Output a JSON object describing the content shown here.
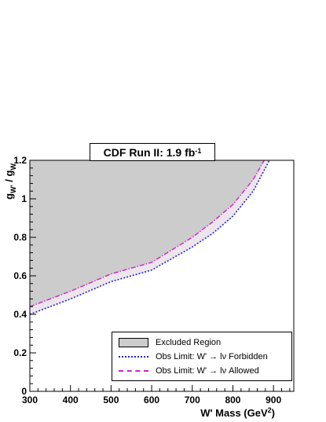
{
  "chart_data": {
    "type": "line",
    "title": "CDF Run II: 1.9 fb",
    "title_superscript": "-1",
    "xlabel": "W' Mass (GeV",
    "xlabel_superscript": "2",
    "xlabel_suffix": ")",
    "ylabel": "g",
    "ylabel_sub1": "W'",
    "ylabel_mid": " / g",
    "ylabel_sub2": "W",
    "xlim": [
      300,
      950
    ],
    "ylim": [
      0,
      1.2
    ],
    "xticks": [
      300,
      400,
      500,
      600,
      700,
      800,
      900
    ],
    "yticks": [
      0,
      0.2,
      0.4,
      0.6,
      0.8,
      1,
      1.2
    ],
    "ytick_labels": [
      "0",
      "0.2",
      "0.4",
      "0.6",
      "0.8",
      "1",
      "1.2"
    ],
    "grid": false,
    "legend_position": "bottom-right",
    "series": [
      {
        "name": "Excluded Region",
        "style": "filled-area-above-curve",
        "color": "#cccccc",
        "x": [
          300,
          400,
          500,
          600,
          700,
          750,
          800,
          850,
          877
        ],
        "y": [
          0.44,
          0.52,
          0.61,
          0.67,
          0.8,
          0.88,
          0.97,
          1.1,
          1.2
        ]
      },
      {
        "name": "Obs Limit: W' → lν Forbidden",
        "style": "dotted",
        "color": "#2222cc",
        "x": [
          300,
          400,
          500,
          600,
          700,
          750,
          800,
          850,
          890
        ],
        "y": [
          0.4,
          0.48,
          0.57,
          0.63,
          0.75,
          0.82,
          0.91,
          1.04,
          1.2
        ]
      },
      {
        "name": "Obs Limit: W' → lν Allowed",
        "style": "dash-dot",
        "color": "#cc22cc",
        "x": [
          300,
          400,
          500,
          600,
          700,
          750,
          800,
          850,
          877
        ],
        "y": [
          0.44,
          0.52,
          0.61,
          0.67,
          0.8,
          0.88,
          0.97,
          1.1,
          1.2
        ]
      }
    ]
  }
}
